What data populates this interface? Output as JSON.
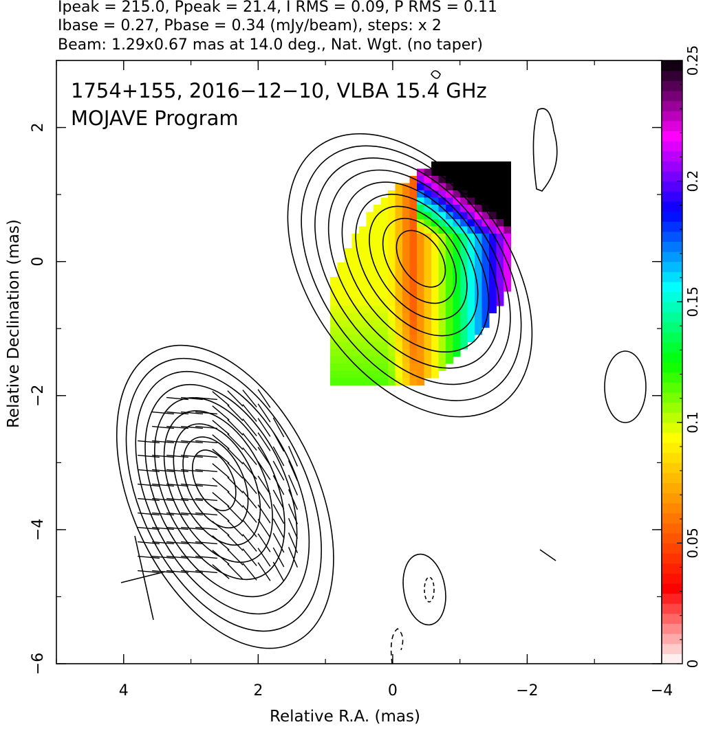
{
  "header": {
    "line1": "Ipeak = 215.0, Ppeak = 21.4, I RMS = 0.09, P RMS = 0.11",
    "line2": "Ibase = 0.27, Pbase = 0.34 (mJy/beam), steps: x 2",
    "line3": "Beam: 1.29x0.67 mas at 14.0 deg., Nat. Wgt. (no taper)"
  },
  "annotation": {
    "line1": "1754+155, 2016−12−10, VLBA 15.4 GHz",
    "line2": "MOJAVE Program"
  },
  "chart_data": {
    "type": "heatmap",
    "xlabel": "Relative R.A. (mas)",
    "ylabel": "Relative Declination (mas)",
    "xlim": [
      5,
      -4
    ],
    "ylim": [
      -6,
      3
    ],
    "xticks": [
      4,
      2,
      0,
      -2,
      -4
    ],
    "xtick_labels": [
      "4",
      "2",
      "0",
      "−2",
      "−4"
    ],
    "yticks": [
      -6,
      -4,
      -2,
      0,
      2
    ],
    "ytick_labels": [
      "−6",
      "−4",
      "−2",
      "0",
      "2"
    ],
    "colorbar": {
      "range": [
        0,
        0.25
      ],
      "ticks": [
        0,
        0.05,
        0.1,
        0.15,
        0.2,
        0.25
      ],
      "tick_labels": [
        "0",
        "0.05",
        "0.1",
        "0.15",
        "0.2",
        "0.25"
      ],
      "stops": [
        "#ffffff",
        "#ff0000",
        "#ff8000",
        "#ffff00",
        "#00ff00",
        "#00ffff",
        "#0000ff",
        "#ff00ff",
        "#000000"
      ]
    },
    "components": [
      {
        "x": 0.0,
        "y": 0.0
      },
      {
        "x": 2.9,
        "y": -3.1
      }
    ]
  }
}
